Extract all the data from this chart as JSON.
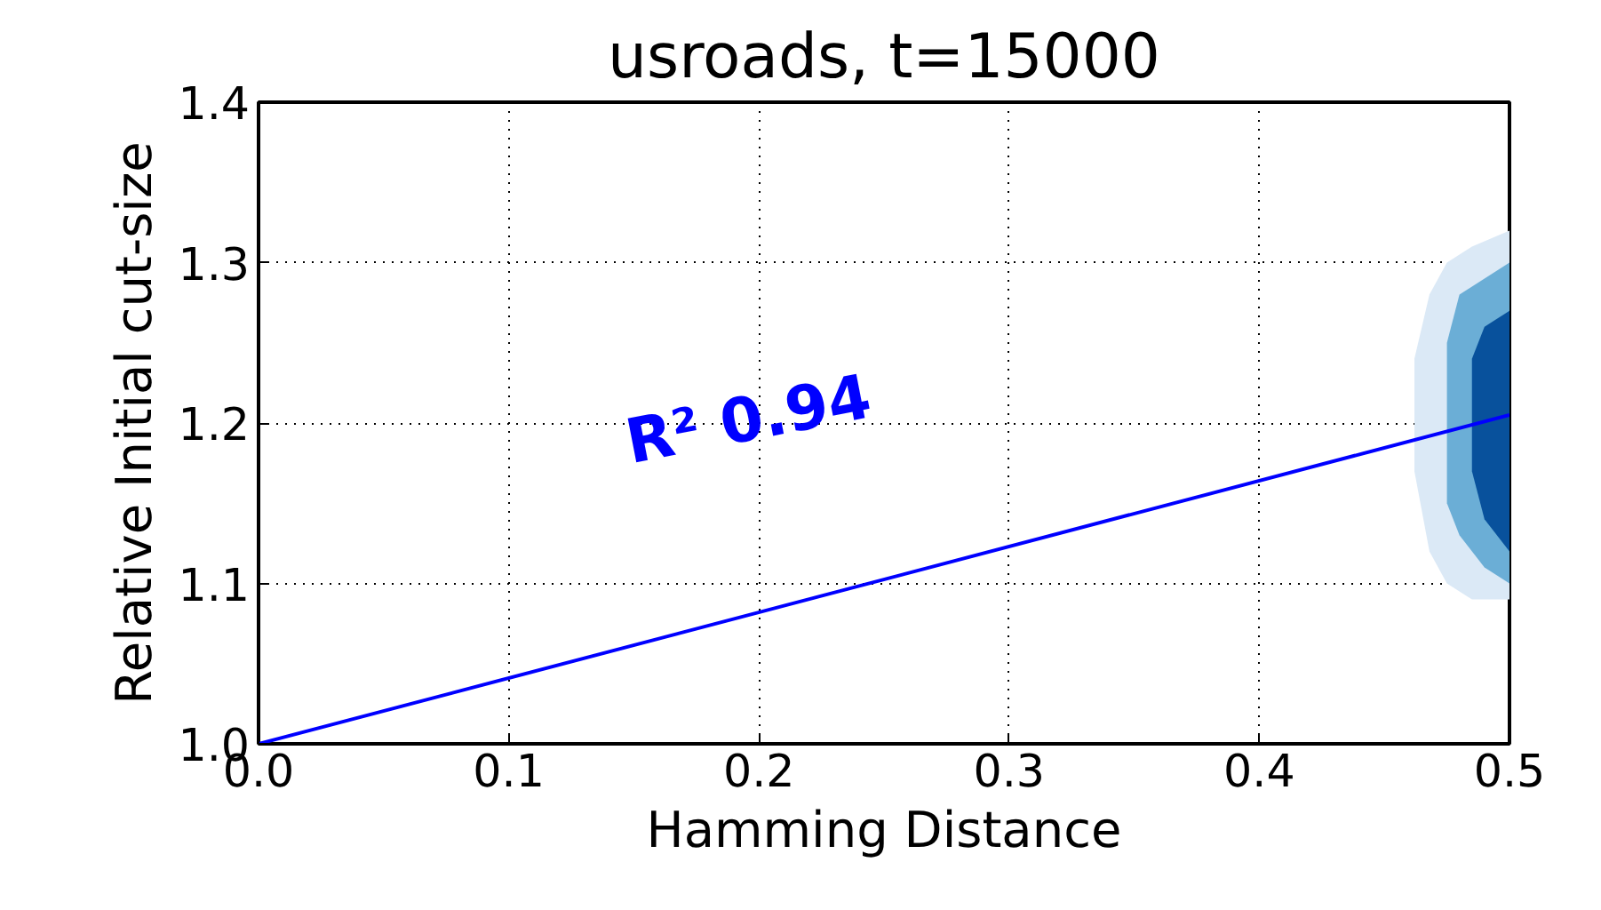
{
  "chart_data": {
    "type": "line",
    "title": "usroads, t=15000",
    "xlabel": "Hamming Distance",
    "ylabel": "Relative Initial cut-size",
    "xlim": [
      0,
      0.5
    ],
    "ylim": [
      1.0,
      1.4
    ],
    "xticks": [
      {
        "value": 0,
        "label": "0.0"
      },
      0.1,
      0.2,
      0.3,
      0.4,
      0.5
    ],
    "yticks": [
      {
        "value": 1,
        "label": "1.0"
      },
      1.1,
      1.2,
      1.3,
      1.4
    ],
    "grid": true,
    "series": [
      {
        "type": "area",
        "color": "#dbe9f6",
        "x": [
          0.5,
          0.485,
          0.475,
          0.468,
          0.462,
          0.462,
          0.468,
          0.475,
          0.485,
          0.5
        ],
        "values": [
          1.32,
          1.31,
          1.3,
          1.28,
          1.24,
          1.17,
          1.12,
          1.1,
          1.09,
          1.09
        ]
      },
      {
        "type": "area",
        "color": "#6baed6",
        "x": [
          0.5,
          0.49,
          0.48,
          0.475,
          0.475,
          0.48,
          0.49,
          0.5
        ],
        "values": [
          1.3,
          1.29,
          1.28,
          1.25,
          1.15,
          1.13,
          1.11,
          1.1
        ]
      },
      {
        "type": "area",
        "color": "#08519c",
        "x": [
          0.5,
          0.49,
          0.485,
          0.485,
          0.49,
          0.5
        ],
        "values": [
          1.27,
          1.26,
          1.24,
          1.17,
          1.14,
          1.12
        ]
      },
      {
        "color": "#0000ff",
        "x": [
          0,
          0.5
        ],
        "values": [
          1.0,
          1.205
        ]
      }
    ],
    "annotations": [
      "R² 0.94"
    ]
  }
}
